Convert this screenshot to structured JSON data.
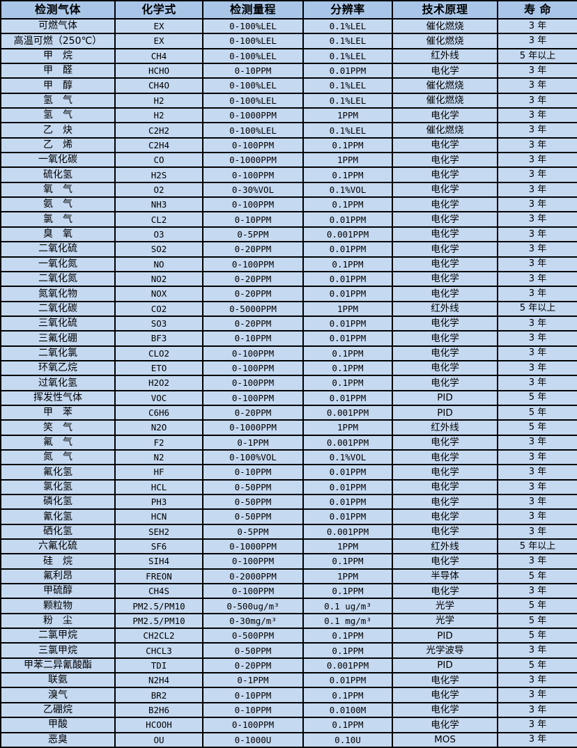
{
  "colors": {
    "header_bg": "#A9C6E9",
    "row_bg": "#C5D9F1",
    "border": "#000000",
    "text": "#000000"
  },
  "table": {
    "columns": [
      {
        "key": "gas",
        "label": "检测气体"
      },
      {
        "key": "formula",
        "label": "化学式"
      },
      {
        "key": "range",
        "label": "检测量程"
      },
      {
        "key": "resolution",
        "label": "分辨率"
      },
      {
        "key": "principle",
        "label": "技术原理"
      },
      {
        "key": "lifespan",
        "label": "寿 命"
      }
    ],
    "rows": [
      [
        "可燃气体",
        "EX",
        "0-100%LEL",
        "0.1%LEL",
        "催化燃烧",
        "3 年"
      ],
      [
        "高温可燃（250℃）",
        "EX",
        "0-100%LEL",
        "0.1%LEL",
        "催化燃烧",
        "3 年"
      ],
      [
        "甲　烷",
        "CH4",
        "0-100%LEL",
        "0.1%LEL",
        "红外线",
        "5 年以上"
      ],
      [
        "甲　醛",
        "HCHO",
        "0-10PPM",
        "0.01PPM",
        "电化学",
        "3 年"
      ],
      [
        "甲　醇",
        "CH4O",
        "0-100%LEL",
        "0.1%LEL",
        "催化燃烧",
        "3 年"
      ],
      [
        "氢　气",
        "H2",
        "0-100%LEL",
        "0.1%LEL",
        "催化燃烧",
        "3 年"
      ],
      [
        "氢　气",
        "H2",
        "0-1000PPM",
        "1PPM",
        "电化学",
        "3 年"
      ],
      [
        "乙　炔",
        "C2H2",
        "0-100%LEL",
        "0.1%LEL",
        "催化燃烧",
        "3 年"
      ],
      [
        "乙　烯",
        "C2H4",
        "0-100PPM",
        "0.1PPM",
        "电化学",
        "3 年"
      ],
      [
        "一氧化碳",
        "CO",
        "0-1000PPM",
        "1PPM",
        "电化学",
        "3 年"
      ],
      [
        "硫化氢",
        "H2S",
        "0-100PPM",
        "0.1PPM",
        "电化学",
        "3 年"
      ],
      [
        "氧　气",
        "O2",
        "0-30%VOL",
        "0.1%VOL",
        "电化学",
        "3 年"
      ],
      [
        "氨　气",
        "NH3",
        "0-100PPM",
        "0.1PPM",
        "电化学",
        "3 年"
      ],
      [
        "氯　气",
        "CL2",
        "0-10PPM",
        "0.01PPM",
        "电化学",
        "3 年"
      ],
      [
        "臭　氧",
        "O3",
        "0-5PPM",
        "0.001PPM",
        "电化学",
        "3 年"
      ],
      [
        "二氧化硫",
        "SO2",
        "0-20PPM",
        "0.01PPM",
        "电化学",
        "3 年"
      ],
      [
        "一氧化氮",
        "NO",
        "0-100PPM",
        "0.1PPM",
        "电化学",
        "3 年"
      ],
      [
        "二氧化氮",
        "NO2",
        "0-20PPM",
        "0.01PPM",
        "电化学",
        "3 年"
      ],
      [
        "氮氧化物",
        "NOX",
        "0-20PPM",
        "0.01PPM",
        "电化学",
        "3 年"
      ],
      [
        "二氧化碳",
        "CO2",
        "0-5000PPM",
        "1PPM",
        "红外线",
        "5 年以上"
      ],
      [
        "三氧化硫",
        "SO3",
        "0-20PPM",
        "0.01PPM",
        "电化学",
        "3 年"
      ],
      [
        "三氟化硼",
        "BF3",
        "0-10PPM",
        "0.01PPM",
        "电化学",
        "3 年"
      ],
      [
        "二氧化氯",
        "CLO2",
        "0-100PPM",
        "0.1PPM",
        "电化学",
        "3 年"
      ],
      [
        "环氧乙烷",
        "ETO",
        "0-100PPM",
        "0.1PPM",
        "电化学",
        "3 年"
      ],
      [
        "过氧化氢",
        "H2O2",
        "0-100PPM",
        "0.1PPM",
        "电化学",
        "3 年"
      ],
      [
        "挥发性气体",
        "VOC",
        "0-100PPM",
        "0.01PPM",
        "PID",
        "5 年"
      ],
      [
        "甲　苯",
        "C6H6",
        "0-20PPM",
        "0.001PPM",
        "PID",
        "5 年"
      ],
      [
        "笑　气",
        "N2O",
        "0-1000PPM",
        "1PPM",
        "红外线",
        "5 年"
      ],
      [
        "氟　气",
        "F2",
        "0-1PPM",
        "0.001PPM",
        "电化学",
        "3 年"
      ],
      [
        "氮　气",
        "N2",
        "0-100%VOL",
        "0.1%VOL",
        "电化学",
        "3 年"
      ],
      [
        "氟化氢",
        "HF",
        "0-10PPM",
        "0.01PPM",
        "电化学",
        "3 年"
      ],
      [
        "氯化氢",
        "HCL",
        "0-50PPM",
        "0.01PPM",
        "电化学",
        "3 年"
      ],
      [
        "磷化氢",
        "PH3",
        "0-50PPM",
        "0.01PPM",
        "电化学",
        "3 年"
      ],
      [
        "氰化氢",
        "HCN",
        "0-50PPM",
        "0.01PPM",
        "电化学",
        "3 年"
      ],
      [
        "硒化氢",
        "SEH2",
        "0-5PPM",
        "0.001PPM",
        "电化学",
        "3 年"
      ],
      [
        "六氟化硫",
        "SF6",
        "0-1000PPM",
        "1PPM",
        "红外线",
        "5 年以上"
      ],
      [
        "硅　烷",
        "SIH4",
        "0-100PPM",
        "0.1PPM",
        "电化学",
        "3 年"
      ],
      [
        "氟利昂",
        "FREON",
        "0-2000PPM",
        "1PPM",
        "半导体",
        "5 年"
      ],
      [
        "甲硫醇",
        "CH4S",
        "0-100PPM",
        "0.1PPM",
        "电化学",
        "3 年"
      ],
      [
        "颗粒物",
        "PM2.5/PM10",
        "0-500ug/m³",
        "0.1 ug/m³",
        "光学",
        "5 年"
      ],
      [
        "粉　尘",
        "PM2.5/PM10",
        "0-30mg/m³",
        "0.1 mg/m³",
        "光学",
        "5 年"
      ],
      [
        "二氯甲烷",
        "CH2CL2",
        "0-500PPM",
        "0.1PPM",
        "PID",
        "5 年"
      ],
      [
        "三氯甲烷",
        "CHCL3",
        "0-50PPM",
        "0.1PPM",
        "光学波导",
        "3 年"
      ],
      [
        "甲苯二异氰酸酯",
        "TDI",
        "0-20PPM",
        "0.001PPM",
        "PID",
        "5 年"
      ],
      [
        "联氨",
        "N2H4",
        "0-1PPM",
        "0.01PPM",
        "电化学",
        "3 年"
      ],
      [
        "溴气",
        "BR2",
        "0-10PPM",
        "0.1PPM",
        "电化学",
        "3 年"
      ],
      [
        "乙硼烷",
        "B2H6",
        "0-10PPM",
        "0.0100M",
        "电化学",
        "3 年"
      ],
      [
        "甲酸",
        "HCOOH",
        "0-100PPM",
        "0.1PPM",
        "电化学",
        "3 年"
      ],
      [
        "恶臭",
        "OU",
        "0-1000U",
        "0.10U",
        "MOS",
        "3 年"
      ]
    ]
  }
}
